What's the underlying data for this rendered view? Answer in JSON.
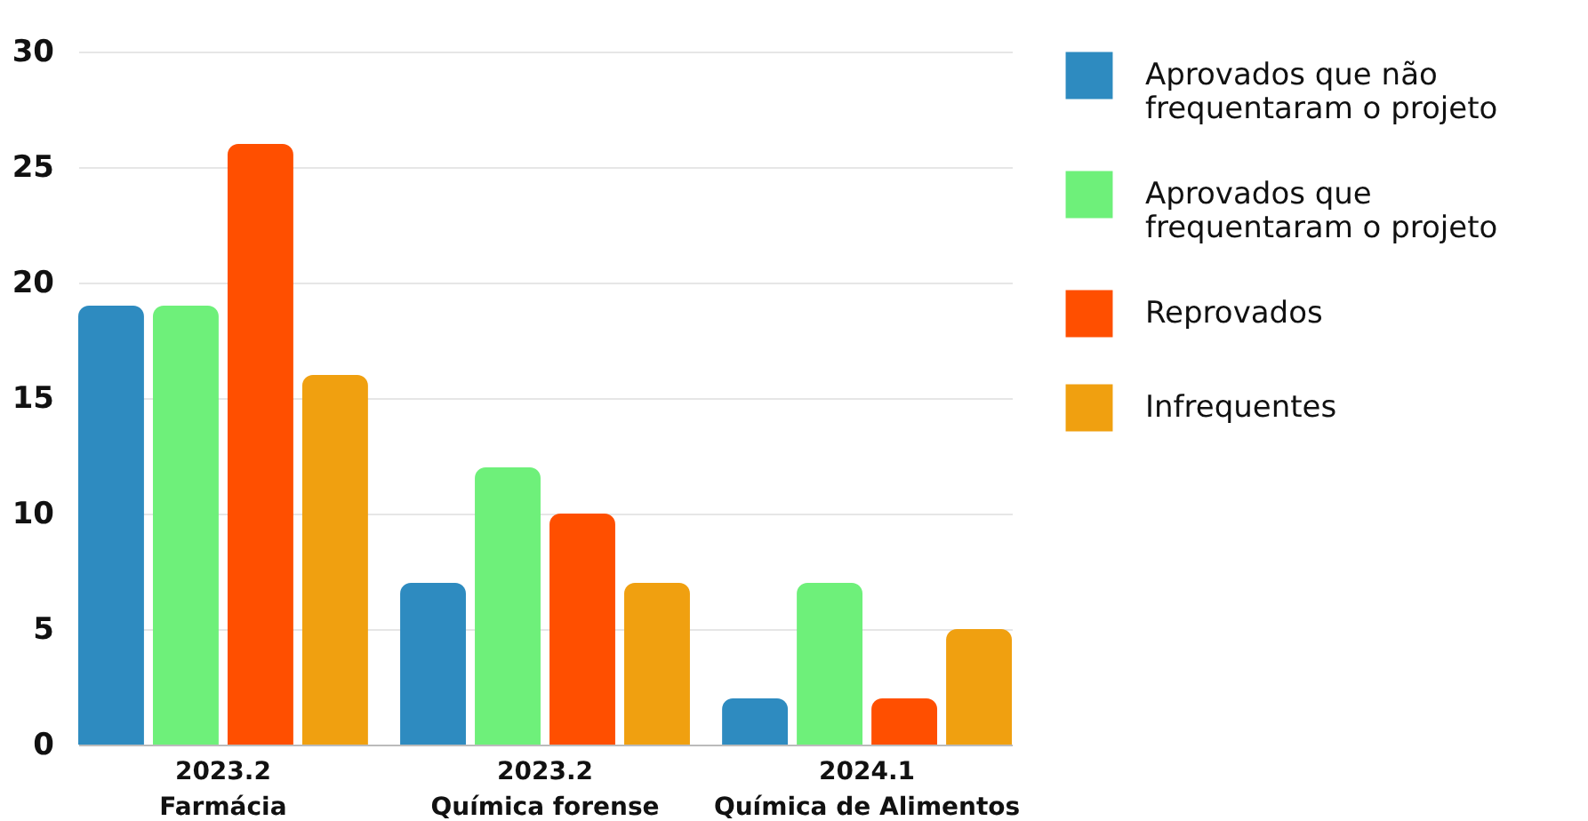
{
  "chart_data": {
    "type": "bar",
    "categories": [
      "2023.2\nFarmácia",
      "2023.2\nQuímica forense",
      "2024.1\nQuímica de Alimentos"
    ],
    "series": [
      {
        "name": "Aprovados que  não\nfrequentaram o projeto",
        "color": "#2e8bc0",
        "values": [
          19,
          7,
          2
        ]
      },
      {
        "name": "Aprovados que\nfrequentaram o projeto",
        "color": "#6ef07a",
        "values": [
          19,
          12,
          7
        ]
      },
      {
        "name": "Reprovados",
        "color": "#ff4f00",
        "values": [
          26,
          10,
          2
        ]
      },
      {
        "name": "Infrequentes",
        "color": "#f0a010",
        "values": [
          16,
          7,
          5
        ]
      }
    ],
    "ylim": [
      0,
      30
    ],
    "yticks": [
      0,
      5,
      10,
      15,
      20,
      25,
      30
    ],
    "grid": "y",
    "legend": "right"
  }
}
